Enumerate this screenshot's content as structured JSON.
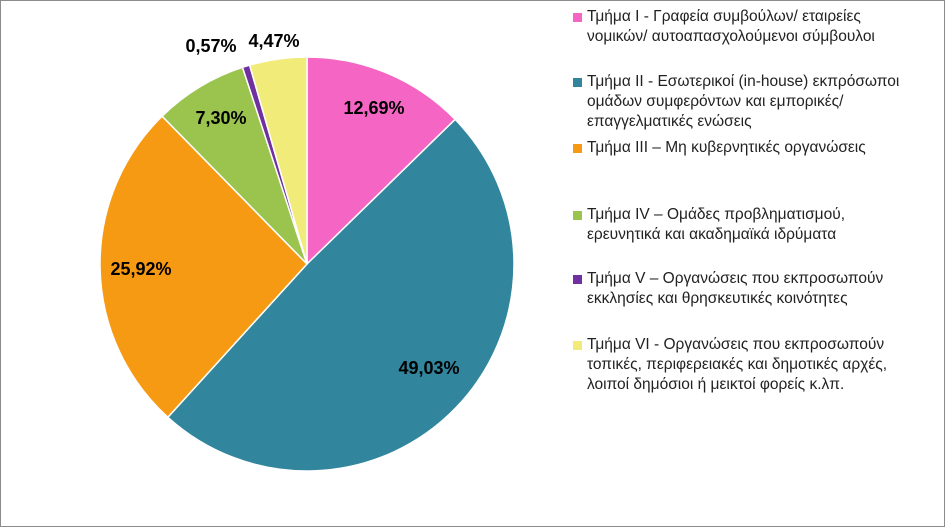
{
  "chart_data": {
    "type": "pie",
    "slices": [
      {
        "label": "Τμήμα Ι - Γραφεία συμβούλων/ εταιρείες\nνομικών/ αυτοαπασχολούμενοι σύμβουλοι",
        "value": 12.69,
        "display": "12,69%",
        "color": "#f465c4"
      },
      {
        "label": "Τμήμα ΙΙ - Εσωτερικοί (in-house) εκπρόσωποι\nομάδων συμφερόντων και εμπορικές/\nεπαγγελματικές ενώσεις",
        "value": 49.03,
        "display": "49,03%",
        "color": "#31859c"
      },
      {
        "label": "Τμήμα ΙΙΙ – Μη κυβερνητικές οργανώσεις",
        "value": 25.92,
        "display": "25,92%",
        "color": "#f79a13"
      },
      {
        "label": "Τμήμα IV – Ομάδες προβληματισμού,\nερευνητικά και ακαδημαϊκά ιδρύματα",
        "value": 7.3,
        "display": "7,30%",
        "color": "#9bc44f"
      },
      {
        "label": "Τμήμα V – Οργανώσεις που εκπροσωπούν\nεκκλησίες και θρησκευτικές κοινότητες",
        "value": 0.57,
        "display": "0,57%",
        "color": "#7030a0"
      },
      {
        "label": "Τμήμα VI - Οργανώσεις που εκπροσωπούν\nτοπικές, περιφερειακές και δημοτικές αρχές,\nλοιποί δημόσιοι ή μεικτοί φορείς κ.λπ.",
        "value": 4.47,
        "display": "4,47%",
        "color": "#f1ec7a"
      }
    ],
    "legend_position": "right"
  }
}
